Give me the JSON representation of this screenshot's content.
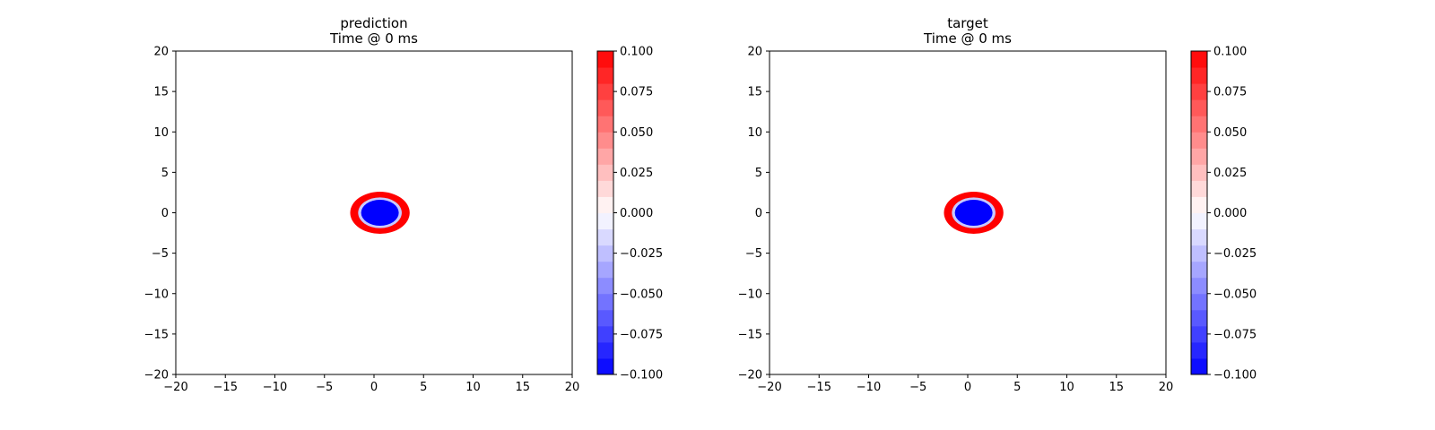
{
  "chart_data": [
    {
      "type": "heatmap",
      "title": "prediction",
      "subtitle": "Time @ 0 ms",
      "xlabel": "",
      "ylabel": "",
      "xlim": [
        -20,
        20
      ],
      "ylim": [
        -20,
        20
      ],
      "xticks": [
        -20,
        -15,
        -10,
        -5,
        0,
        5,
        10,
        15,
        20
      ],
      "yticks": [
        -20,
        -15,
        -10,
        -5,
        0,
        5,
        10,
        15,
        20
      ],
      "grid": false,
      "colormap": "bwr",
      "colorbar": {
        "min": -0.1,
        "max": 0.1,
        "ticks": [
          "-0.100",
          "-0.075",
          "-0.050",
          "-0.025",
          "0.000",
          "0.025",
          "0.050",
          "0.075",
          "0.100"
        ],
        "levels": 20,
        "color_low": "#0000ff",
        "color_mid": "#ffffff",
        "color_high": "#ff0000"
      },
      "features": [
        {
          "name": "positive ring",
          "center": [
            0.6,
            0.0
          ],
          "rx": 3.0,
          "ry": 2.6,
          "value": 0.1
        },
        {
          "name": "transition band",
          "center": [
            0.6,
            0.0
          ],
          "rx": 2.2,
          "ry": 1.9,
          "value": 0.0
        },
        {
          "name": "negative core",
          "center": [
            0.6,
            0.0
          ],
          "rx": 1.9,
          "ry": 1.6,
          "value": -0.1
        }
      ]
    },
    {
      "type": "heatmap",
      "title": "target",
      "subtitle": "Time @ 0 ms",
      "xlabel": "",
      "ylabel": "",
      "xlim": [
        -20,
        20
      ],
      "ylim": [
        -20,
        20
      ],
      "xticks": [
        -20,
        -15,
        -10,
        -5,
        0,
        5,
        10,
        15,
        20
      ],
      "yticks": [
        -20,
        -15,
        -10,
        -5,
        0,
        5,
        10,
        15,
        20
      ],
      "grid": false,
      "colormap": "bwr",
      "colorbar": {
        "min": -0.1,
        "max": 0.1,
        "ticks": [
          "-0.100",
          "-0.075",
          "-0.050",
          "-0.025",
          "0.000",
          "0.025",
          "0.050",
          "0.075",
          "0.100"
        ],
        "levels": 20,
        "color_low": "#0000ff",
        "color_mid": "#ffffff",
        "color_high": "#ff0000"
      },
      "features": [
        {
          "name": "positive ring",
          "center": [
            0.6,
            0.0
          ],
          "rx": 3.0,
          "ry": 2.6,
          "value": 0.1
        },
        {
          "name": "transition band",
          "center": [
            0.6,
            0.0
          ],
          "rx": 2.2,
          "ry": 1.9,
          "value": 0.0
        },
        {
          "name": "negative core",
          "center": [
            0.6,
            0.0
          ],
          "rx": 1.9,
          "ry": 1.6,
          "value": -0.1
        }
      ]
    }
  ]
}
